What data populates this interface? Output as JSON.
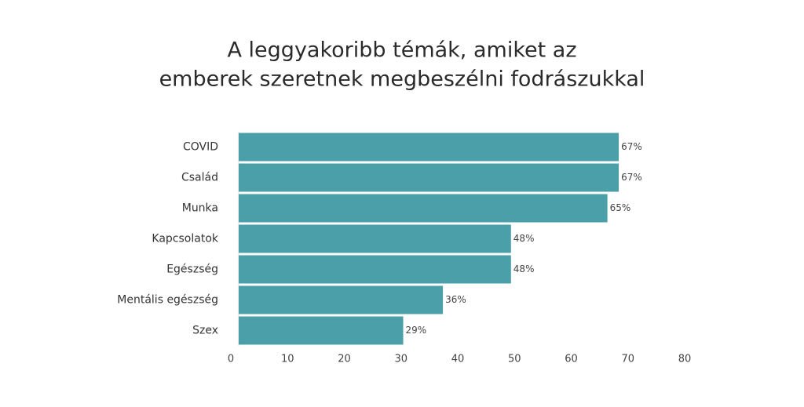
{
  "chart_data": {
    "type": "bar",
    "orientation": "horizontal",
    "title": [
      "A leggyakoribb témák, amiket az",
      "emberek szeretnek megbeszélni fodrászukkal"
    ],
    "categories": [
      "COVID",
      "Család",
      "Munka",
      "Kapcsolatok",
      "Egészség",
      "Mentális egészség",
      "Szex"
    ],
    "values": [
      67,
      67,
      65,
      48,
      48,
      36,
      29
    ],
    "value_labels": [
      "67%",
      "67%",
      "65%",
      "48%",
      "48%",
      "36%",
      "29%"
    ],
    "color": "#4a9fa8",
    "xlim": [
      0,
      80
    ],
    "xticks": [
      0,
      10,
      20,
      30,
      40,
      50,
      60,
      70,
      80
    ],
    "grid": false
  }
}
